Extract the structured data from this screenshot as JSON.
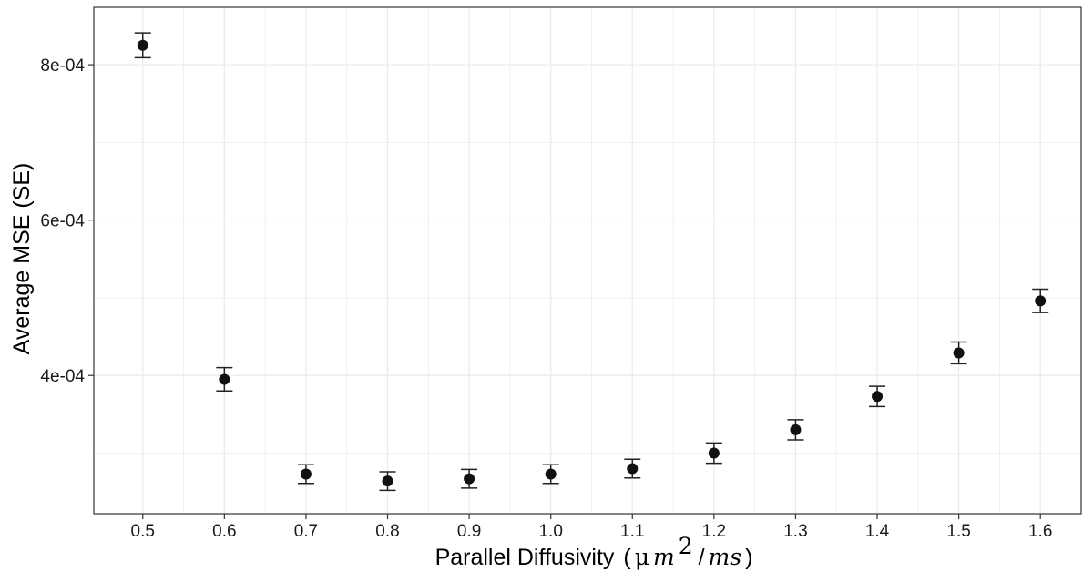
{
  "chart_data": {
    "type": "scatter",
    "xlabel": "Parallel Diffusivity",
    "xlabel_unit": {
      "open": "(",
      "mu": "μ",
      "m": "m",
      "sup": "2",
      "slash": "/",
      "ms": "ms",
      "close": ")"
    },
    "ylabel": "Average MSE (SE)",
    "x_ticks": [
      "0.5",
      "0.6",
      "0.7",
      "0.8",
      "0.9",
      "1.0",
      "1.1",
      "1.2",
      "1.3",
      "1.4",
      "1.5",
      "1.6"
    ],
    "y_ticks": [
      {
        "value": 0.0004,
        "label": "4e-04"
      },
      {
        "value": 0.0006,
        "label": "6e-04"
      },
      {
        "value": 0.0008,
        "label": "8e-04"
      }
    ],
    "xlim": [
      0.44,
      1.65
    ],
    "ylim": [
      0.000222,
      0.000874
    ],
    "grid": true,
    "legend": "none",
    "colors": {
      "point": "#111111",
      "errorbar": "#222222",
      "grid": "#ebebeb",
      "panel_border": "#333333"
    },
    "series": [
      {
        "x": [
          0.5,
          0.6,
          0.7,
          0.8,
          0.9,
          1.0,
          1.1,
          1.2,
          1.3,
          1.4,
          1.5,
          1.6
        ],
        "y": [
          0.000825,
          0.000395,
          0.000273,
          0.000264,
          0.000267,
          0.000273,
          0.00028,
          0.0003,
          0.00033,
          0.000373,
          0.000429,
          0.000496
        ],
        "se": [
          1.6e-05,
          1.5e-05,
          1.2e-05,
          1.2e-05,
          1.2e-05,
          1.2e-05,
          1.2e-05,
          1.3e-05,
          1.3e-05,
          1.3e-05,
          1.4e-05,
          1.5e-05
        ]
      }
    ]
  }
}
